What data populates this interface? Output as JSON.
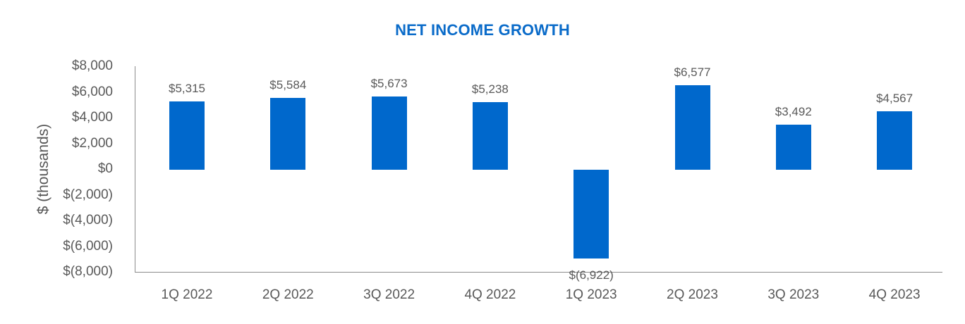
{
  "chart_data": {
    "type": "bar",
    "title": "NET INCOME GROWTH",
    "xlabel": "",
    "ylabel": "$ (thousands)",
    "categories": [
      "1Q 2022",
      "2Q 2022",
      "3Q 2022",
      "4Q 2022",
      "1Q 2023",
      "2Q 2023",
      "3Q 2023",
      "4Q 2023"
    ],
    "values": [
      5315,
      5584,
      5673,
      5238,
      -6922,
      6577,
      3492,
      4567
    ],
    "data_labels": [
      "$5,315",
      "$5,584",
      "$5,673",
      "$5,238",
      "$(6,922)",
      "$6,577",
      "$3,492",
      "$4,567"
    ],
    "ylim": [
      -8000,
      8000
    ],
    "yticks": [
      8000,
      6000,
      4000,
      2000,
      0,
      -2000,
      -4000,
      -6000,
      -8000
    ],
    "ytick_labels": [
      "$8,000",
      "$6,000",
      "$4,000",
      "$2,000",
      "$0",
      "$(2,000)",
      "$(4,000)",
      "$(6,000)",
      "$(8,000)"
    ],
    "grid": false,
    "legend": null,
    "bar_color": "#0068cc",
    "title_color": "#0a6bc9"
  }
}
